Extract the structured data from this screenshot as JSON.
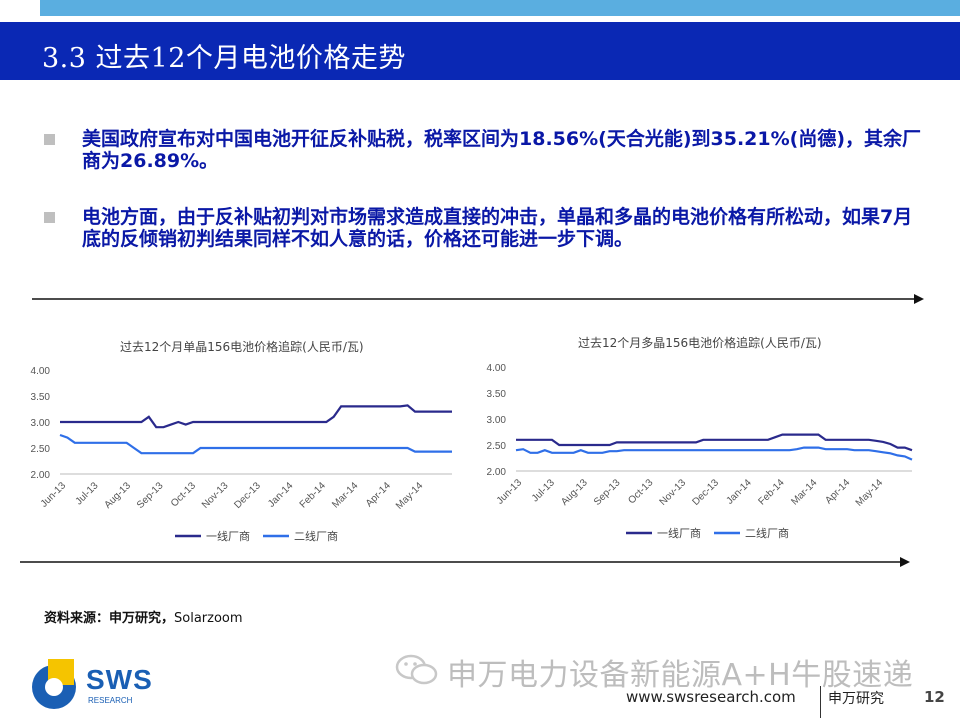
{
  "slide": {
    "title": "3.3 过去12个月电池价格走势",
    "page": "12"
  },
  "bullets": [
    "美国政府宣布对中国电池开征反补贴税，税率区间为18.56%(天合光能)到35.21%(尚德)，其余厂商为26.89%。",
    "电池方面，由于反补贴初判对市场需求造成直接的冲击，单晶和多晶的电池价格有所松动，如果7月底的反倾销初判结果同样不如人意的话，价格还可能进一步下调。"
  ],
  "source": {
    "label": "资料来源：申万研究，",
    "value": "Solarzoom"
  },
  "watermark": "申万电力设备新能源A+H牛股速递",
  "footer": {
    "url": "www.swsresearch.com",
    "org": "申万研究",
    "logo_text": "SWS",
    "logo_sub": "RESEARCH"
  },
  "colors": {
    "title_bar": "#0a28b4",
    "top_strip": "#5aaee0",
    "bullet_text": "#0a18a6",
    "series1": "#2a2a8c",
    "series2": "#2f6fe8"
  },
  "chart_data": [
    {
      "type": "line",
      "title": "过去12个月单晶156电池价格追踪(人民币/瓦)",
      "ylim": [
        2.0,
        4.0
      ],
      "yticks": [
        "4.00",
        "3.50",
        "3.00",
        "2.50",
        "2.00"
      ],
      "xticks": [
        "Jun-13",
        "Jul-13",
        "Aug-13",
        "Sep-13",
        "Oct-13",
        "Nov-13",
        "Dec-13",
        "Jan-14",
        "Feb-14",
        "Mar-14",
        "Apr-14",
        "May-14"
      ],
      "series": [
        {
          "name": "一线厂商",
          "values": [
            3.0,
            3.0,
            3.0,
            3.0,
            3.0,
            3.0,
            3.0,
            3.0,
            3.0,
            3.0,
            3.0,
            3.0,
            3.1,
            2.9,
            2.9,
            2.95,
            3.0,
            2.95,
            3.0,
            3.0,
            3.0,
            3.0,
            3.0,
            3.0,
            3.0,
            3.0,
            3.0,
            3.0,
            3.0,
            3.0,
            3.0,
            3.0,
            3.0,
            3.0,
            3.0,
            3.0,
            3.0,
            3.1,
            3.3,
            3.3,
            3.3,
            3.3,
            3.3,
            3.3,
            3.3,
            3.3,
            3.3,
            3.32,
            3.2,
            3.2,
            3.2,
            3.2,
            3.2,
            3.2
          ]
        },
        {
          "name": "二线厂商",
          "values": [
            2.75,
            2.7,
            2.6,
            2.6,
            2.6,
            2.6,
            2.6,
            2.6,
            2.6,
            2.6,
            2.5,
            2.4,
            2.4,
            2.4,
            2.4,
            2.4,
            2.4,
            2.4,
            2.4,
            2.5,
            2.5,
            2.5,
            2.5,
            2.5,
            2.5,
            2.5,
            2.5,
            2.5,
            2.5,
            2.5,
            2.5,
            2.5,
            2.5,
            2.5,
            2.5,
            2.5,
            2.5,
            2.5,
            2.5,
            2.5,
            2.5,
            2.5,
            2.5,
            2.5,
            2.5,
            2.5,
            2.5,
            2.5,
            2.43,
            2.43,
            2.43,
            2.43,
            2.43,
            2.43
          ]
        }
      ]
    },
    {
      "type": "line",
      "title": "过去12个月多晶156电池价格追踪(人民币/瓦)",
      "ylim": [
        2.0,
        4.0
      ],
      "yticks": [
        "4.00",
        "3.50",
        "3.00",
        "2.50",
        "2.00"
      ],
      "xticks": [
        "Jun-13",
        "Jul-13",
        "Aug-13",
        "Sep-13",
        "Oct-13",
        "Nov-13",
        "Dec-13",
        "Jan-14",
        "Feb-14",
        "Mar-14",
        "Apr-14",
        "May-14"
      ],
      "series": [
        {
          "name": "一线厂商",
          "values": [
            2.6,
            2.6,
            2.6,
            2.6,
            2.6,
            2.6,
            2.5,
            2.5,
            2.5,
            2.5,
            2.5,
            2.5,
            2.5,
            2.5,
            2.55,
            2.55,
            2.55,
            2.55,
            2.55,
            2.55,
            2.55,
            2.55,
            2.55,
            2.55,
            2.55,
            2.55,
            2.6,
            2.6,
            2.6,
            2.6,
            2.6,
            2.6,
            2.6,
            2.6,
            2.6,
            2.6,
            2.65,
            2.7,
            2.7,
            2.7,
            2.7,
            2.7,
            2.7,
            2.6,
            2.6,
            2.6,
            2.6,
            2.6,
            2.6,
            2.6,
            2.58,
            2.56,
            2.52,
            2.45,
            2.45,
            2.4
          ]
        },
        {
          "name": "二线厂商",
          "values": [
            2.4,
            2.42,
            2.35,
            2.35,
            2.4,
            2.35,
            2.35,
            2.35,
            2.35,
            2.4,
            2.35,
            2.35,
            2.35,
            2.38,
            2.38,
            2.4,
            2.4,
            2.4,
            2.4,
            2.4,
            2.4,
            2.4,
            2.4,
            2.4,
            2.4,
            2.4,
            2.4,
            2.4,
            2.4,
            2.4,
            2.4,
            2.4,
            2.4,
            2.4,
            2.4,
            2.4,
            2.4,
            2.4,
            2.4,
            2.42,
            2.45,
            2.45,
            2.45,
            2.42,
            2.42,
            2.42,
            2.42,
            2.4,
            2.4,
            2.4,
            2.38,
            2.36,
            2.34,
            2.3,
            2.28,
            2.22
          ]
        }
      ]
    }
  ]
}
